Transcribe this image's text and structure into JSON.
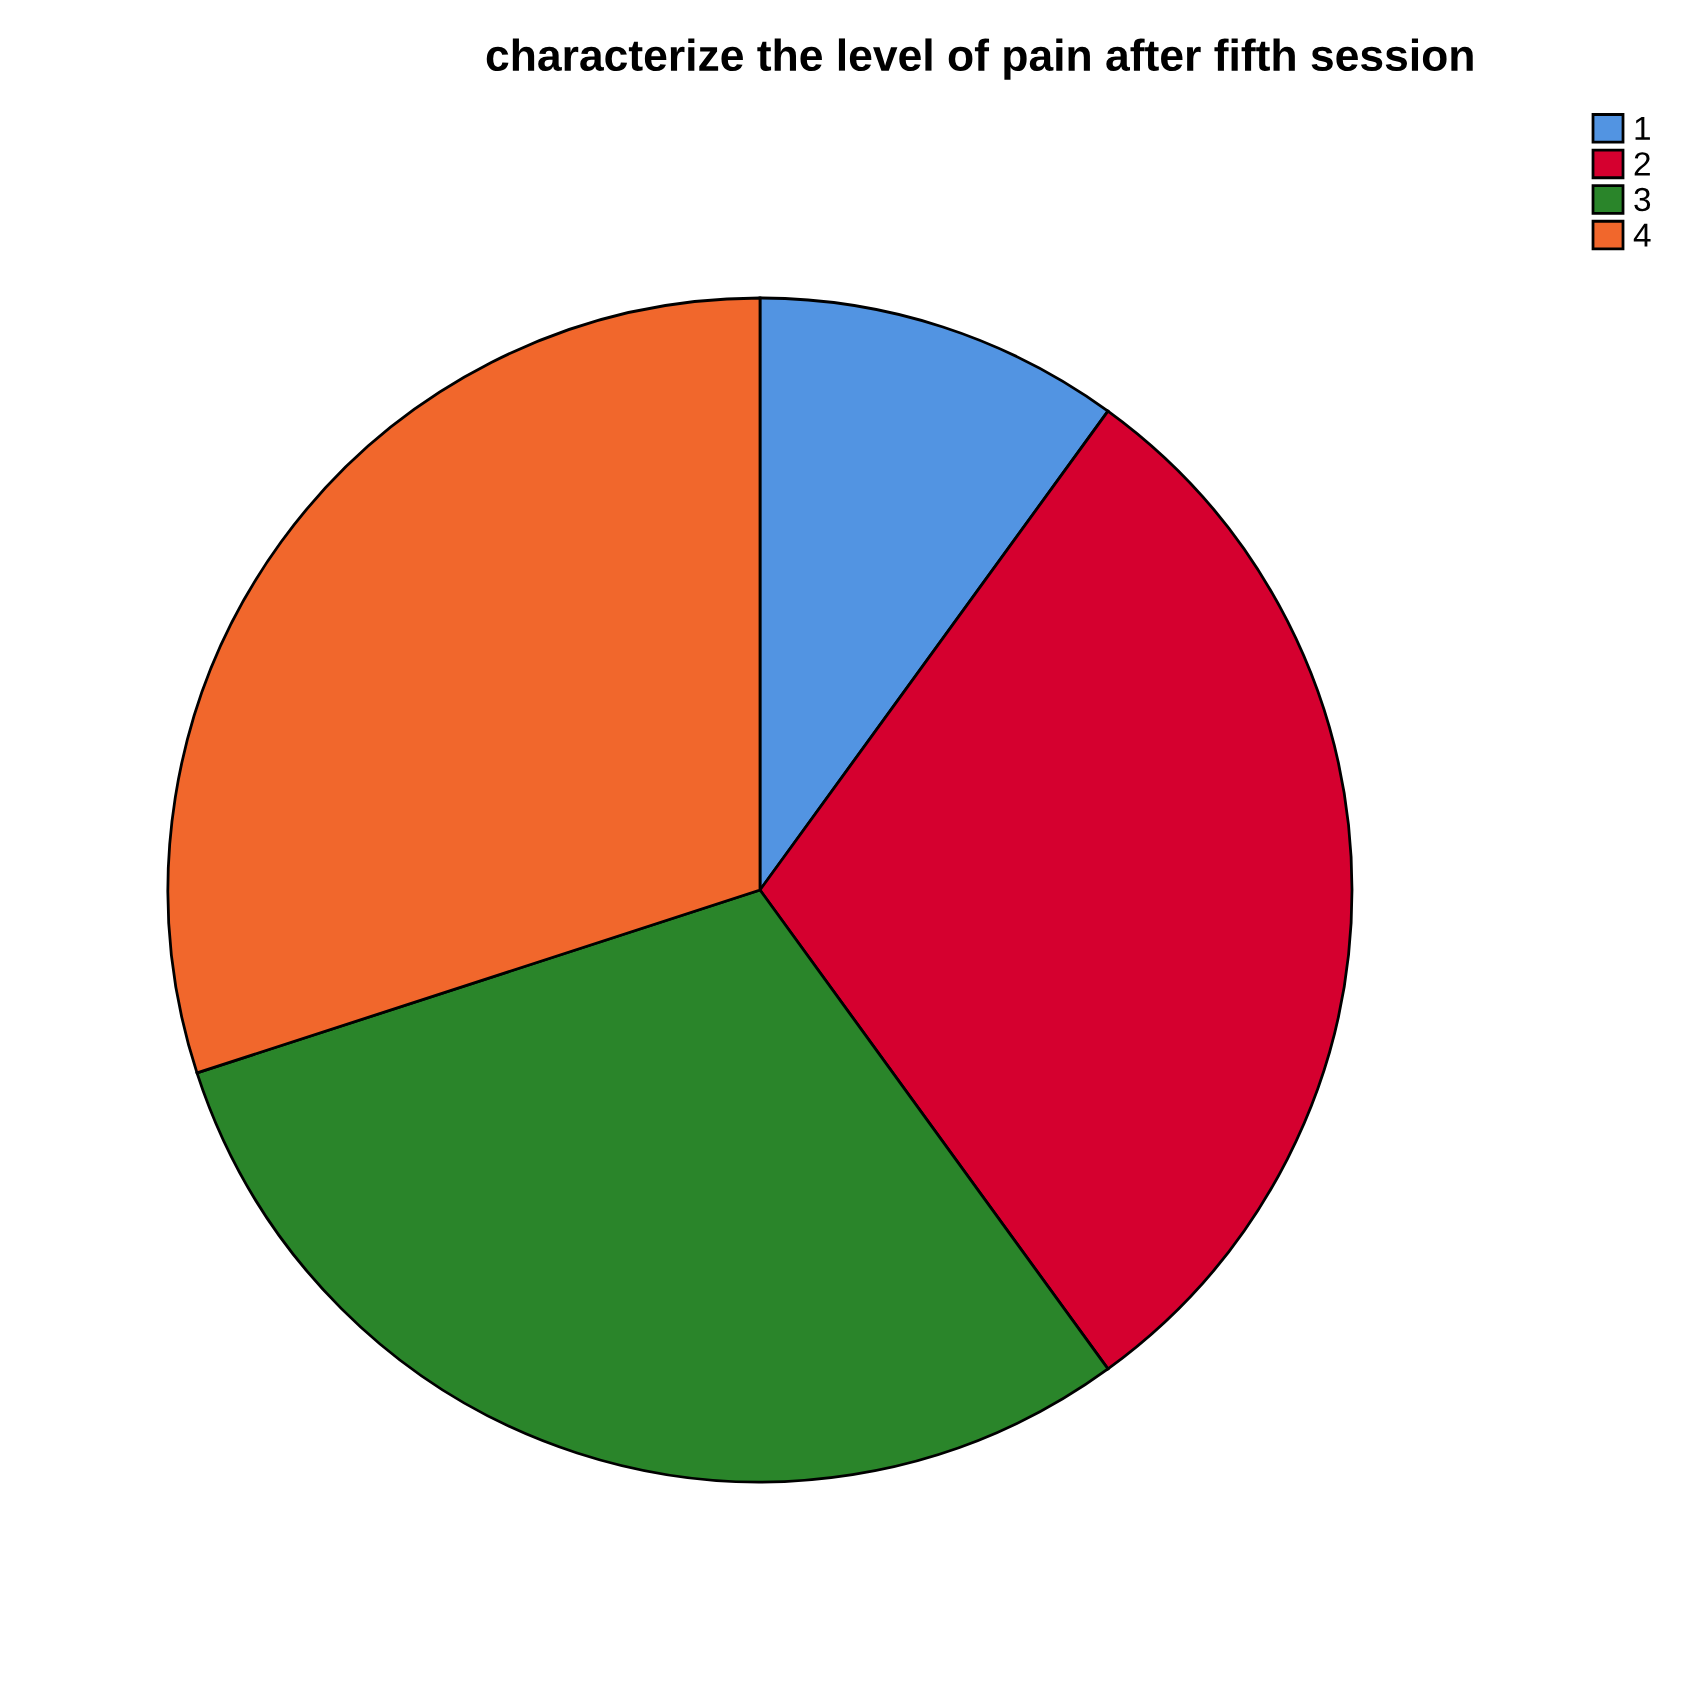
{
  "chart_data": {
    "type": "pie",
    "title": "characterize the level of pain after fifth session",
    "categories": [
      "1",
      "2",
      "3",
      "4"
    ],
    "values": [
      10,
      30,
      30,
      30
    ],
    "colors": [
      "#5294e2",
      "#d5002f",
      "#2a852a",
      "#f1672c"
    ],
    "legend": "top right"
  }
}
